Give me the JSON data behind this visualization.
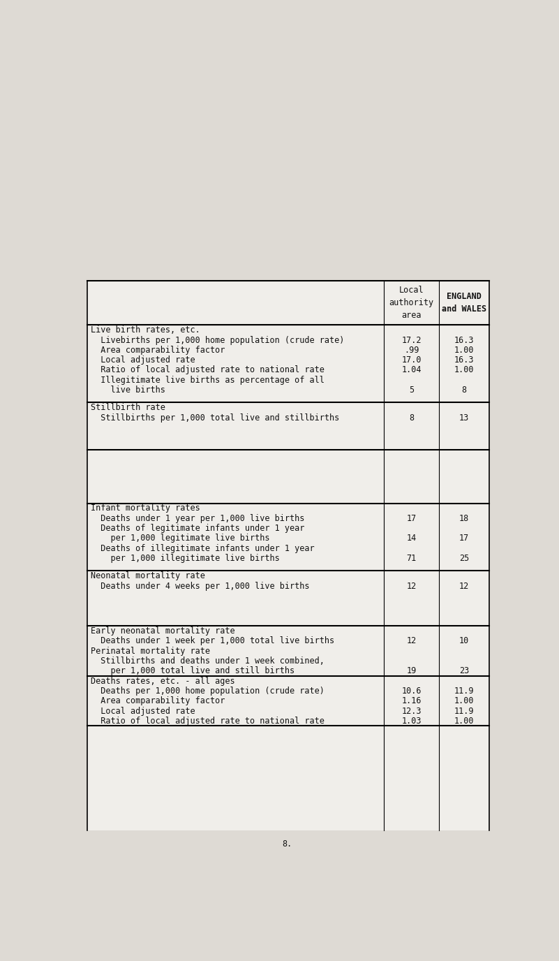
{
  "bg_color": "#dedad4",
  "table_bg": "#f0eeea",
  "text_color": "#111111",
  "header": {
    "col1": "Local\nauthority\narea",
    "col2": "ENGLAND\nand WALES"
  },
  "sections": [
    {
      "title": "Live birth rates, etc.",
      "rows": [
        {
          "label": "  Livebirths per 1,000 home population (crude rate)",
          "v1": "17.2",
          "v2": "16.3"
        },
        {
          "label": "  Area comparability factor",
          "v1": ".99",
          "v2": "1.00"
        },
        {
          "label": "  Local adjusted rate",
          "v1": "17.0",
          "v2": "16.3"
        },
        {
          "label": "  Ratio of local adjusted rate to national rate",
          "v1": "1.04",
          "v2": "1.00"
        },
        {
          "label": "  Illegitimate live births as percentage of all",
          "v1": "",
          "v2": ""
        },
        {
          "label": "    live births",
          "v1": "5",
          "v2": "8"
        }
      ]
    },
    {
      "title": "Stillbirth rate",
      "rows": [
        {
          "label": "  Stillbirths per 1,000 total live and stillbirths",
          "v1": "8",
          "v2": "13"
        }
      ]
    },
    {
      "title": "",
      "rows": [],
      "blank": true
    },
    {
      "title": "Infant mortality rates",
      "rows": [
        {
          "label": "  Deaths under 1 year per 1,000 live births",
          "v1": "17",
          "v2": "18"
        },
        {
          "label": "  Deaths of legitimate infants under 1 year",
          "v1": "",
          "v2": ""
        },
        {
          "label": "    per 1,000 legitimate live births",
          "v1": "14",
          "v2": "17"
        },
        {
          "label": "  Deaths of illegitimate infants under 1 year",
          "v1": "",
          "v2": ""
        },
        {
          "label": "    per 1,000 illegitimate live births",
          "v1": "71",
          "v2": "25"
        }
      ]
    },
    {
      "title": "Neonatal mortality rate",
      "rows": [
        {
          "label": "  Deaths under 4 weeks per 1,000 live births",
          "v1": "12",
          "v2": "12"
        }
      ]
    },
    {
      "title": "Early neonatal mortality rate",
      "rows": [
        {
          "label": "  Deaths under 1 week per 1,000 total live births",
          "v1": "12",
          "v2": "10"
        },
        {
          "label": "Perinatal mortality rate",
          "v1": "",
          "v2": ""
        },
        {
          "label": "  Stillbirths and deaths under 1 week combined,",
          "v1": "",
          "v2": ""
        },
        {
          "label": "    per 1,000 total live and still births",
          "v1": "19",
          "v2": "23"
        }
      ],
      "thick_bottom": true
    },
    {
      "title": "Deaths rates, etc. - all ages",
      "rows": [
        {
          "label": "  Deaths per 1,000 home population (crude rate)",
          "v1": "10.6",
          "v2": "11.9"
        },
        {
          "label": "  Area comparability factor",
          "v1": "1.16",
          "v2": "1.00"
        },
        {
          "label": "  Local adjusted rate",
          "v1": "12.3",
          "v2": "11.9"
        },
        {
          "label": "  Ratio of local adjusted rate to national rate",
          "v1": "1.03",
          "v2": "1.00"
        }
      ],
      "thick_bottom": true
    }
  ],
  "page_number": "8.",
  "font_size": 8.5,
  "title_font_size": 8.5
}
